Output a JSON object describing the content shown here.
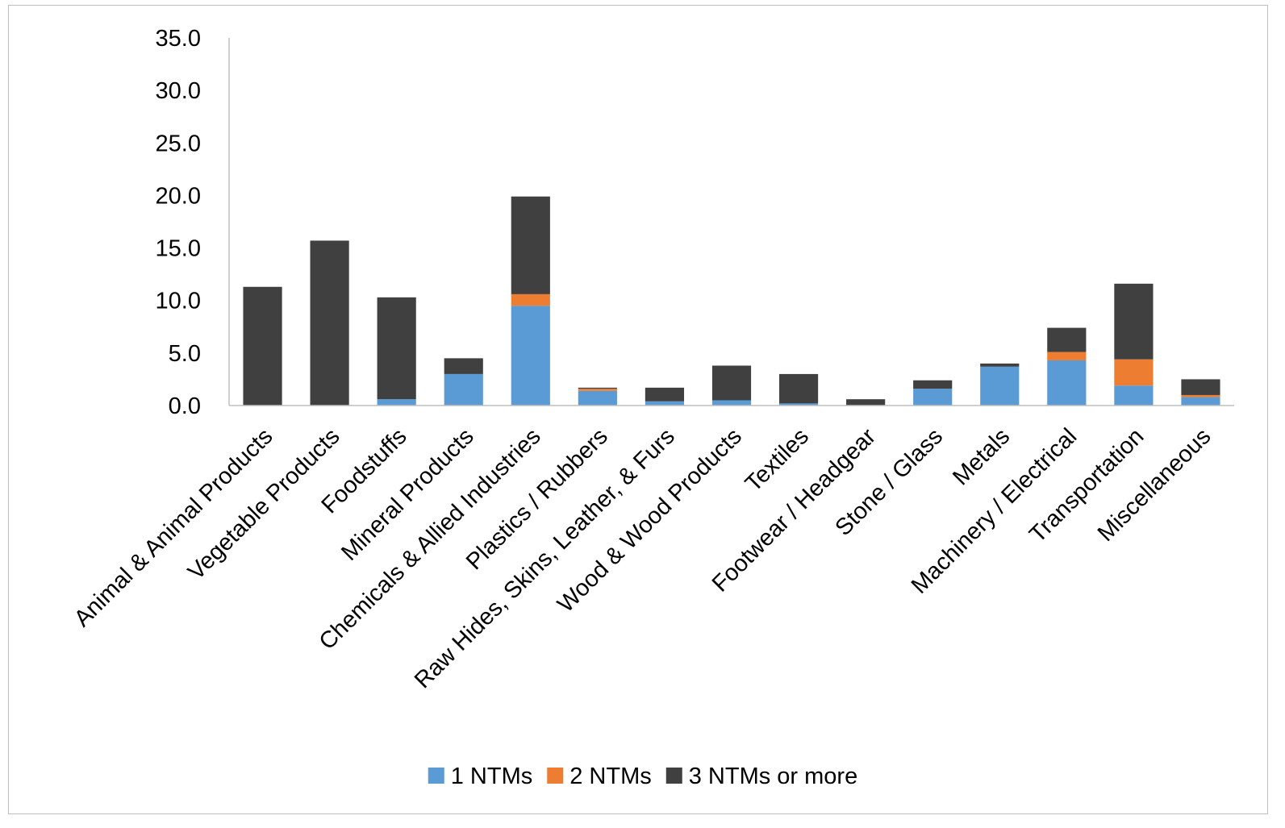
{
  "chart_data": {
    "type": "bar",
    "stacked": true,
    "title": "",
    "xlabel": "",
    "ylabel": "",
    "ylim": [
      0,
      35
    ],
    "yticks": [
      "0.0",
      "5.0",
      "10.0",
      "15.0",
      "20.0",
      "25.0",
      "30.0",
      "35.0"
    ],
    "grid": false,
    "legend_position": "bottom",
    "categories": [
      "Animal & Animal Products",
      "Vegetable Products",
      "Foodstuffs",
      "Mineral Products",
      "Chemicals & Allied Industries",
      "Plastics / Rubbers",
      "Raw Hides, Skins, Leather, & Furs",
      "Wood & Wood Products",
      "Textiles",
      "Footwear / Headgear",
      "Stone / Glass",
      "Metals",
      "Machinery / Electrical",
      "Transportation",
      "Miscellaneous"
    ],
    "series": [
      {
        "name": "1 NTMs",
        "color": "#5b9bd5",
        "values": [
          0.0,
          0.0,
          0.6,
          3.0,
          9.5,
          1.4,
          0.4,
          0.5,
          0.2,
          0.0,
          1.6,
          3.7,
          4.3,
          1.9,
          0.8
        ]
      },
      {
        "name": "2 NTMs",
        "color": "#ed7d31",
        "values": [
          0.0,
          0.0,
          0.0,
          0.0,
          1.1,
          0.2,
          0.0,
          0.0,
          0.0,
          0.0,
          0.0,
          0.0,
          0.8,
          2.5,
          0.2
        ]
      },
      {
        "name": "3 NTMs or more",
        "color": "#404040",
        "values": [
          11.3,
          15.7,
          9.7,
          1.5,
          9.3,
          0.1,
          1.3,
          3.3,
          2.8,
          0.6,
          0.8,
          0.3,
          2.3,
          7.2,
          1.5
        ]
      }
    ]
  }
}
